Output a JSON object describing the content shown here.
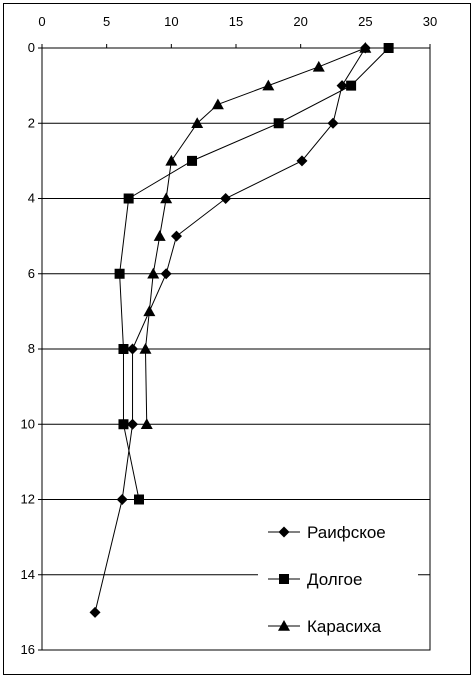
{
  "chart_data": {
    "type": "line",
    "title": "",
    "xlabel": "",
    "ylabel": "",
    "x_axis_position": "top",
    "y_axis_inverted": true,
    "xlim": [
      0,
      30
    ],
    "ylim": [
      0,
      16
    ],
    "x_ticks": [
      "0",
      "5",
      "10",
      "15",
      "20",
      "25",
      "30"
    ],
    "y_ticks": [
      "0",
      "2",
      "4",
      "6",
      "8",
      "10",
      "12",
      "14",
      "16"
    ],
    "grid": "horizontal",
    "legend_position": "bottom-right",
    "series": [
      {
        "name": "Раифское",
        "marker": "diamond",
        "points": [
          {
            "x": 25.0,
            "y": 0
          },
          {
            "x": 23.2,
            "y": 1
          },
          {
            "x": 22.5,
            "y": 2
          },
          {
            "x": 20.1,
            "y": 3
          },
          {
            "x": 14.2,
            "y": 4
          },
          {
            "x": 10.4,
            "y": 5
          },
          {
            "x": 9.6,
            "y": 6
          },
          {
            "x": 7.0,
            "y": 8
          },
          {
            "x": 7.0,
            "y": 10
          },
          {
            "x": 6.2,
            "y": 12
          },
          {
            "x": 4.1,
            "y": 15
          }
        ]
      },
      {
        "name": "Долгое",
        "marker": "square",
        "points": [
          {
            "x": 26.8,
            "y": 0
          },
          {
            "x": 23.9,
            "y": 1
          },
          {
            "x": 18.3,
            "y": 2
          },
          {
            "x": 11.6,
            "y": 3
          },
          {
            "x": 6.7,
            "y": 4
          },
          {
            "x": 6.0,
            "y": 6
          },
          {
            "x": 6.3,
            "y": 8
          },
          {
            "x": 6.3,
            "y": 10
          },
          {
            "x": 7.5,
            "y": 12
          }
        ]
      },
      {
        "name": "Карасиха",
        "marker": "triangle",
        "points": [
          {
            "x": 25.0,
            "y": 0
          },
          {
            "x": 21.4,
            "y": 0.5
          },
          {
            "x": 17.5,
            "y": 1
          },
          {
            "x": 13.6,
            "y": 1.5
          },
          {
            "x": 12.0,
            "y": 2
          },
          {
            "x": 10.0,
            "y": 3
          },
          {
            "x": 9.6,
            "y": 4
          },
          {
            "x": 9.1,
            "y": 5
          },
          {
            "x": 8.6,
            "y": 6
          },
          {
            "x": 8.3,
            "y": 7
          },
          {
            "x": 8.0,
            "y": 8
          },
          {
            "x": 8.1,
            "y": 10
          }
        ]
      }
    ]
  }
}
